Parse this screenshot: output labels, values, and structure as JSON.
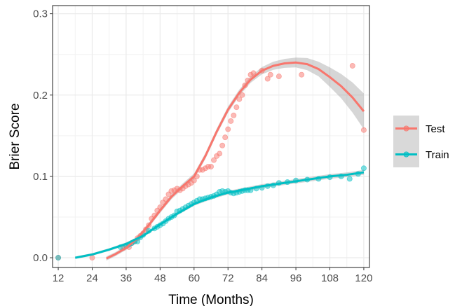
{
  "chart_data": {
    "type": "scatter",
    "xlabel": "Time (Months)",
    "ylabel": "Brier Score",
    "xlim": [
      10,
      122
    ],
    "ylim": [
      -0.012,
      0.31
    ],
    "xticks": [
      12,
      24,
      36,
      48,
      60,
      72,
      84,
      96,
      108,
      120
    ],
    "xtick_labels": [
      "12",
      "24",
      "36",
      "48",
      "60",
      "72",
      "84",
      "96",
      "108",
      "120"
    ],
    "yticks": [
      0.0,
      0.1,
      0.2,
      0.3
    ],
    "ytick_labels": [
      "0.0",
      "0.1",
      "0.2",
      "0.3"
    ],
    "grid": true,
    "legend_position": "right",
    "series": [
      {
        "name": "Test",
        "color": "#F8766D",
        "points": [
          [
            12,
            0.0
          ],
          [
            24,
            0.0
          ],
          [
            35,
            0.012
          ],
          [
            36,
            0.014
          ],
          [
            37,
            0.013
          ],
          [
            38,
            0.018
          ],
          [
            39,
            0.02
          ],
          [
            40,
            0.024
          ],
          [
            41,
            0.027
          ],
          [
            42,
            0.03
          ],
          [
            43,
            0.035
          ],
          [
            44,
            0.04
          ],
          [
            45,
            0.048
          ],
          [
            46,
            0.052
          ],
          [
            47,
            0.058
          ],
          [
            48,
            0.062
          ],
          [
            49,
            0.068
          ],
          [
            50,
            0.072
          ],
          [
            51,
            0.078
          ],
          [
            52,
            0.082
          ],
          [
            53,
            0.083
          ],
          [
            54,
            0.085
          ],
          [
            55,
            0.083
          ],
          [
            56,
            0.085
          ],
          [
            57,
            0.088
          ],
          [
            58,
            0.09
          ],
          [
            59,
            0.092
          ],
          [
            60,
            0.095
          ],
          [
            61,
            0.1
          ],
          [
            62,
            0.108
          ],
          [
            63,
            0.108
          ],
          [
            64,
            0.11
          ],
          [
            65,
            0.112
          ],
          [
            66,
            0.112
          ],
          [
            67,
            0.12
          ],
          [
            68,
            0.125
          ],
          [
            69,
            0.128
          ],
          [
            70,
            0.138
          ],
          [
            71,
            0.148
          ],
          [
            72,
            0.158
          ],
          [
            73,
            0.168
          ],
          [
            74,
            0.175
          ],
          [
            75,
            0.185
          ],
          [
            76,
            0.195
          ],
          [
            77,
            0.2
          ],
          [
            78,
            0.212
          ],
          [
            79,
            0.218
          ],
          [
            80,
            0.225
          ],
          [
            81,
            0.227
          ],
          [
            84,
            0.23
          ],
          [
            86,
            0.22
          ],
          [
            87,
            0.225
          ],
          [
            90,
            0.223
          ],
          [
            98,
            0.225
          ],
          [
            116,
            0.236
          ],
          [
            120,
            0.157
          ]
        ],
        "trend": [
          [
            29,
            -0.001
          ],
          [
            32,
            0.004
          ],
          [
            36,
            0.012
          ],
          [
            40,
            0.024
          ],
          [
            44,
            0.04
          ],
          [
            48,
            0.058
          ],
          [
            52,
            0.075
          ],
          [
            56,
            0.088
          ],
          [
            60,
            0.1
          ],
          [
            64,
            0.125
          ],
          [
            68,
            0.155
          ],
          [
            72,
            0.182
          ],
          [
            76,
            0.203
          ],
          [
            80,
            0.219
          ],
          [
            84,
            0.23
          ],
          [
            88,
            0.236
          ],
          [
            92,
            0.239
          ],
          [
            96,
            0.24
          ],
          [
            100,
            0.238
          ],
          [
            104,
            0.232
          ],
          [
            108,
            0.222
          ],
          [
            112,
            0.211
          ],
          [
            116,
            0.197
          ],
          [
            120,
            0.18
          ]
        ],
        "band_width": [
          [
            29,
            0.0025
          ],
          [
            40,
            0.0025
          ],
          [
            60,
            0.0035
          ],
          [
            80,
            0.004
          ],
          [
            88,
            0.005
          ],
          [
            96,
            0.006
          ],
          [
            104,
            0.009
          ],
          [
            112,
            0.015
          ],
          [
            120,
            0.022
          ]
        ]
      },
      {
        "name": "Train",
        "color": "#00BFC4",
        "points": [
          [
            12,
            0.0
          ],
          [
            34,
            0.013
          ],
          [
            36,
            0.015
          ],
          [
            37,
            0.016
          ],
          [
            38,
            0.018
          ],
          [
            39,
            0.02
          ],
          [
            40,
            0.02
          ],
          [
            41,
            0.025
          ],
          [
            42,
            0.028
          ],
          [
            44,
            0.033
          ],
          [
            46,
            0.036
          ],
          [
            47,
            0.038
          ],
          [
            48,
            0.04
          ],
          [
            49,
            0.042
          ],
          [
            50,
            0.045
          ],
          [
            51,
            0.048
          ],
          [
            52,
            0.05
          ],
          [
            53,
            0.052
          ],
          [
            54,
            0.057
          ],
          [
            55,
            0.058
          ],
          [
            56,
            0.06
          ],
          [
            57,
            0.062
          ],
          [
            58,
            0.064
          ],
          [
            59,
            0.066
          ],
          [
            60,
            0.068
          ],
          [
            61,
            0.07
          ],
          [
            62,
            0.072
          ],
          [
            63,
            0.072
          ],
          [
            64,
            0.073
          ],
          [
            65,
            0.074
          ],
          [
            66,
            0.075
          ],
          [
            67,
            0.076
          ],
          [
            68,
            0.078
          ],
          [
            69,
            0.081
          ],
          [
            70,
            0.082
          ],
          [
            71,
            0.081
          ],
          [
            72,
            0.082
          ],
          [
            73,
            0.08
          ],
          [
            74,
            0.079
          ],
          [
            75,
            0.08
          ],
          [
            76,
            0.081
          ],
          [
            77,
            0.082
          ],
          [
            78,
            0.083
          ],
          [
            79,
            0.083
          ],
          [
            80,
            0.083
          ],
          [
            82,
            0.085
          ],
          [
            84,
            0.086
          ],
          [
            86,
            0.088
          ],
          [
            88,
            0.089
          ],
          [
            90,
            0.092
          ],
          [
            93,
            0.093
          ],
          [
            96,
            0.095
          ],
          [
            100,
            0.096
          ],
          [
            104,
            0.097
          ],
          [
            108,
            0.099
          ],
          [
            112,
            0.1
          ],
          [
            115,
            0.097
          ],
          [
            118,
            0.103
          ],
          [
            120,
            0.11
          ]
        ],
        "trend": [
          [
            18,
            0.0
          ],
          [
            24,
            0.004
          ],
          [
            30,
            0.01
          ],
          [
            36,
            0.017
          ],
          [
            42,
            0.027
          ],
          [
            48,
            0.041
          ],
          [
            54,
            0.054
          ],
          [
            60,
            0.066
          ],
          [
            66,
            0.074
          ],
          [
            72,
            0.08
          ],
          [
            78,
            0.084
          ],
          [
            84,
            0.088
          ],
          [
            90,
            0.091
          ],
          [
            96,
            0.094
          ],
          [
            102,
            0.097
          ],
          [
            108,
            0.1
          ],
          [
            114,
            0.102
          ],
          [
            120,
            0.105
          ]
        ],
        "band_width": [
          [
            18,
            0.0015
          ],
          [
            120,
            0.003
          ]
        ]
      }
    ]
  }
}
